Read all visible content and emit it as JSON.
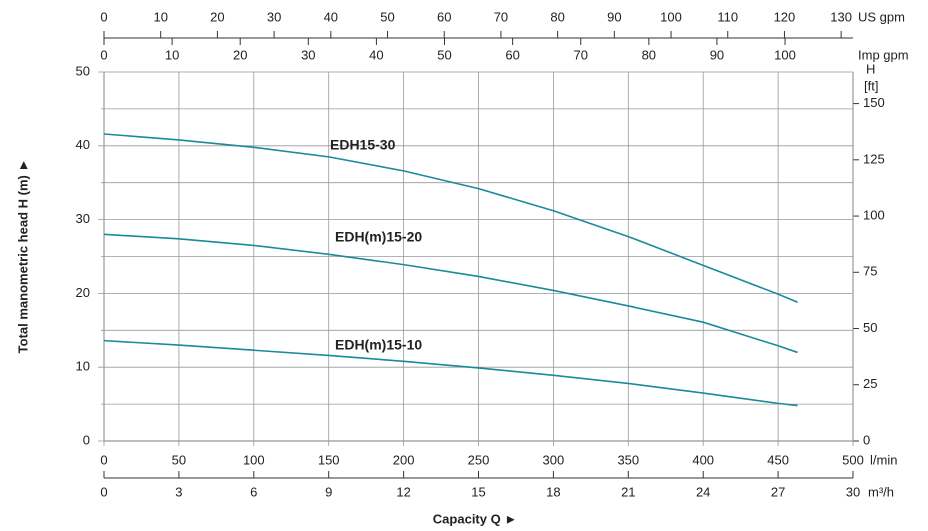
{
  "chart_data": {
    "type": "line",
    "y_label": "Total manometric head H (m) ►",
    "x_label": "Capacity Q ►",
    "x_unit": "l/min",
    "xlim": [
      0,
      500
    ],
    "xticks": [
      0,
      50,
      100,
      150,
      200,
      250,
      300,
      350,
      400,
      450,
      500
    ],
    "ylim": [
      0,
      50
    ],
    "yticks": [
      0,
      10,
      20,
      30,
      40,
      50
    ],
    "y_minor_ticks": [
      5,
      15,
      25,
      35,
      45
    ],
    "grid": true,
    "y2_label": "H",
    "y2_unit": "[ft]",
    "y2lim": [
      0,
      164.04
    ],
    "y2ticks": [
      0,
      25,
      50,
      75,
      100,
      125,
      150
    ],
    "top_axis": {
      "unit": "US gpm",
      "xlim": [
        0,
        132.09
      ],
      "xticks": [
        0,
        10,
        20,
        30,
        40,
        50,
        60,
        70,
        80,
        90,
        100,
        110,
        120,
        130
      ]
    },
    "top_axis_2": {
      "unit": "Imp gpm",
      "xlim": [
        0,
        109.98
      ],
      "xticks": [
        0,
        10,
        20,
        30,
        40,
        50,
        60,
        70,
        80,
        90,
        100
      ]
    },
    "bottom_axis_2": {
      "unit": "m³/h",
      "xlim": [
        0,
        30
      ],
      "xticks": [
        0,
        3,
        6,
        9,
        12,
        15,
        18,
        21,
        24,
        27,
        30
      ]
    },
    "x": [
      0,
      50,
      100,
      150,
      200,
      250,
      300,
      350,
      400,
      450,
      463
    ],
    "series": [
      {
        "name": "EDH15-30",
        "color": "#1b8a99",
        "values": [
          41.6,
          40.8,
          39.8,
          38.5,
          36.6,
          34.2,
          31.2,
          27.7,
          23.8,
          19.9,
          18.8
        ]
      },
      {
        "name": "EDH(m)15-20",
        "color": "#1b8a99",
        "values": [
          28.0,
          27.4,
          26.5,
          25.3,
          23.9,
          22.3,
          20.4,
          18.3,
          16.1,
          12.9,
          12.0
        ]
      },
      {
        "name": "EDH(m)15-10",
        "color": "#1b8a99",
        "values": [
          13.6,
          13.0,
          12.3,
          11.6,
          10.8,
          9.9,
          8.9,
          7.8,
          6.5,
          5.1,
          4.8
        ]
      }
    ]
  }
}
